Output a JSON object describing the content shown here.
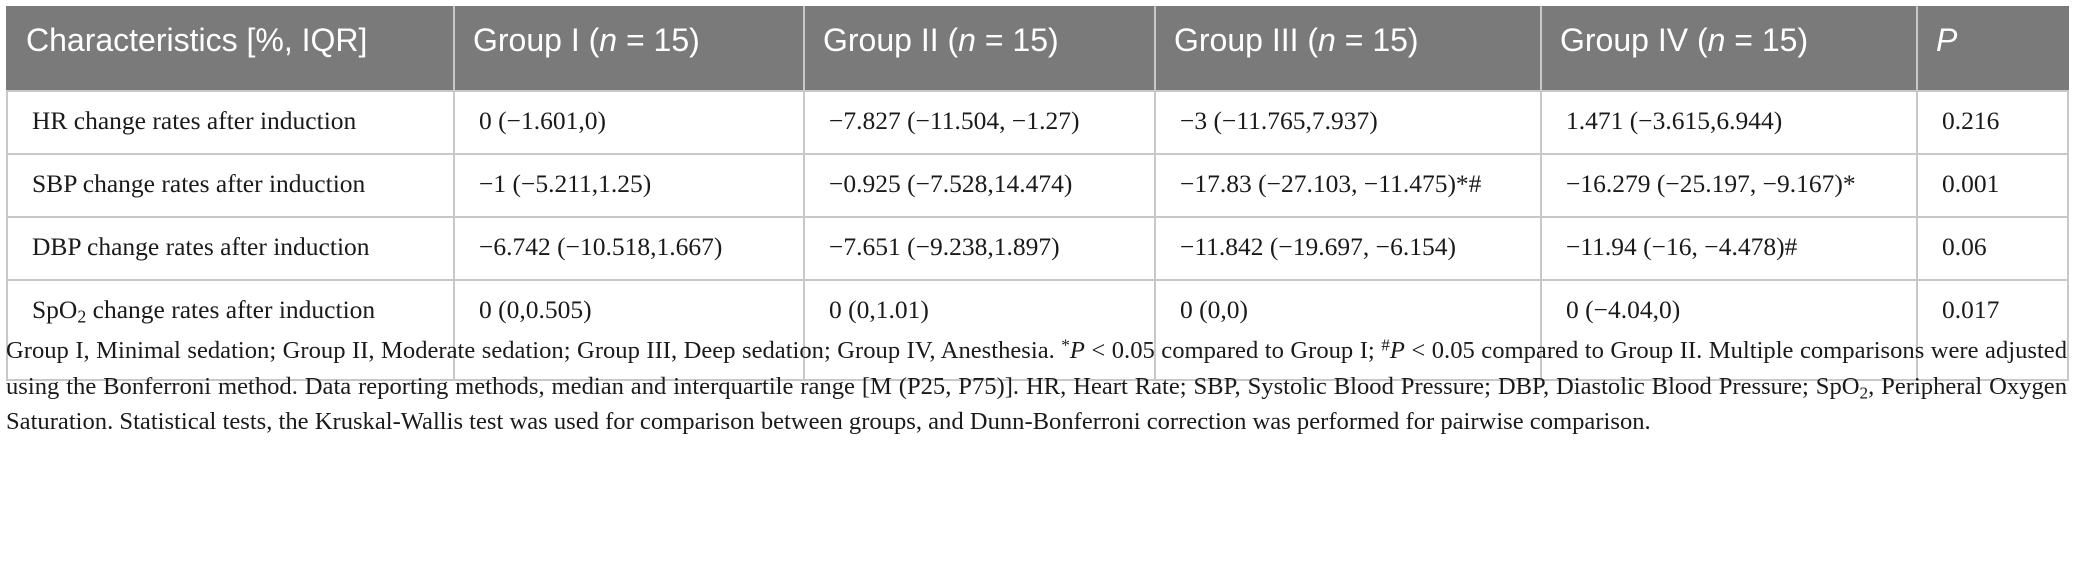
{
  "table": {
    "headers": [
      {
        "text": "Characteristics [%, IQR]"
      },
      {
        "pre": "Group I (",
        "italic": "n",
        "post": " = 15)"
      },
      {
        "pre": "Group II (",
        "italic": "n",
        "post": " = 15)"
      },
      {
        "pre": "Group III (",
        "italic": "n",
        "post": " = 15)"
      },
      {
        "pre": "Group IV (",
        "italic": "n",
        "post": " = 15)"
      },
      {
        "italic": "P"
      }
    ],
    "rows": [
      {
        "label": "HR change rates after induction",
        "cells": [
          "0 (−1.601,0)",
          "−7.827 (−11.504, −1.27)",
          "−3 (−11.765,7.937)",
          "1.471 (−3.615,6.944)",
          "0.216"
        ]
      },
      {
        "label": "SBP change rates after induction",
        "cells": [
          "−1 (−5.211,1.25)",
          "−0.925 (−7.528,14.474)",
          "−17.83 (−27.103, −11.475)*#",
          "−16.279 (−25.197, −9.167)*",
          "0.001"
        ]
      },
      {
        "label": "DBP change rates after induction",
        "cells": [
          "−6.742 (−10.518,1.667)",
          "−7.651 (−9.238,1.897)",
          "−11.842 (−19.697, −6.154)",
          "−11.94 (−16, −4.478)#",
          "0.06"
        ]
      },
      {
        "label_pre": "SpO",
        "label_sub": "2",
        "label_post": " change rates after induction",
        "cells": [
          "0 (0,0.505)",
          "0 (0,1.01)",
          "0 (0,0)",
          "0 (−4.04,0)",
          "0.017"
        ]
      }
    ]
  },
  "footnote": {
    "part1": "Group I, Minimal sedation; Group II, Moderate sedation; Group III, Deep sedation; Group IV, Anesthesia. ",
    "sup1": "*",
    "italic1": "P",
    "part2": " < 0.05 compared to Group I; ",
    "sup2": "#",
    "italic2": "P",
    "part3": " < 0.05 compared to Group II. Multiple comparisons were adjusted using the Bonferroni method. Data reporting methods, median and interquartile range [M (P25, P75)]. HR, Heart Rate; SBP, Systolic Blood Pressure; DBP, Diastolic Blood Pressure; SpO",
    "sub1": "2",
    "part4": ", Peripheral Oxygen Saturation. Statistical tests, the Kruskal-Wallis test was used for comparison between groups, and Dunn-Bonferroni correction was performed for pairwise comparison."
  }
}
